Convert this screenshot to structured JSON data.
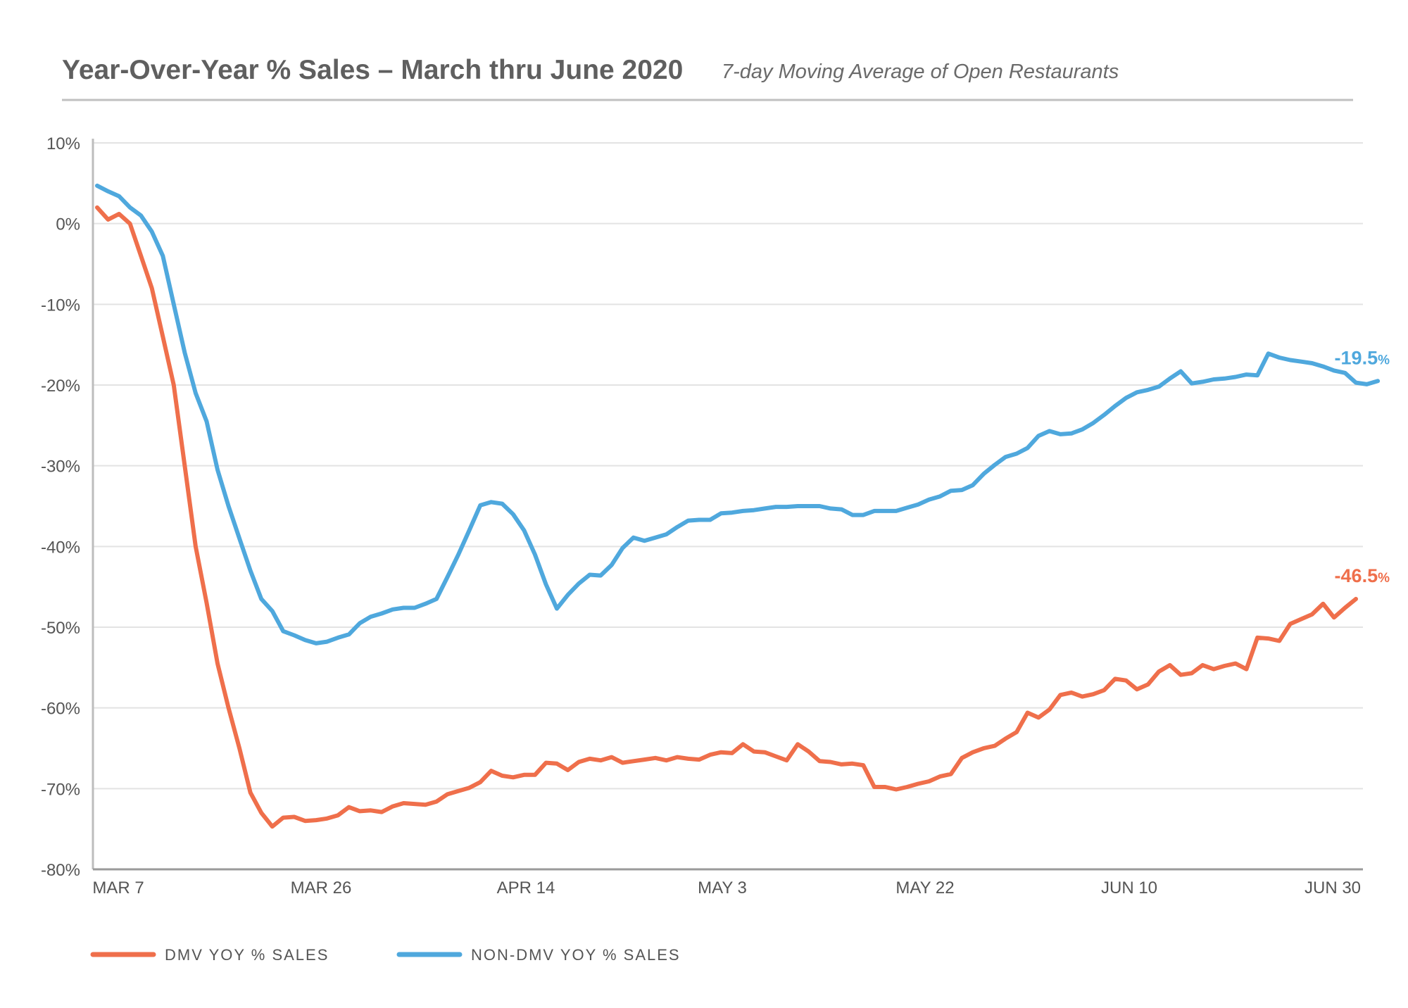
{
  "chart_data": {
    "type": "line",
    "title": "Year-Over-Year % Sales – March thru June 2020",
    "subtitle": "7-day Moving Average of Open Restaurants",
    "xlabel": "",
    "ylabel": "",
    "ylim": [
      -80,
      10
    ],
    "yticks": [
      "10%",
      "0%",
      "-10%",
      "-20%",
      "-30%",
      "-40%",
      "-50%",
      "-60%",
      "-70%",
      "-80%"
    ],
    "ytick_values": [
      10,
      0,
      -10,
      -20,
      -30,
      -40,
      -50,
      -60,
      -70,
      -80
    ],
    "xticks": [
      "MAR 7",
      "MAR 26",
      "APR 14",
      "MAY 3",
      "MAY 22",
      "JUN 10",
      "JUN 30"
    ],
    "x_start": "MAR 7",
    "x_end": "JUN 30",
    "grid": "horizontal",
    "legend_position": "bottom-left",
    "series": [
      {
        "name": "DMV YOY % SALES",
        "color": "#ef6f4b",
        "end_label": "-46.5",
        "end_label_unit": "%",
        "values": [
          2.0,
          0.5,
          1.2,
          0.0,
          -4.0,
          -8.0,
          -14.0,
          -20.0,
          -30.0,
          -40.0,
          -47.0,
          -54.5,
          -60.0,
          -65.0,
          -70.5,
          -73.0,
          -74.7,
          -73.6,
          -73.5,
          -74.0,
          -73.9,
          -73.7,
          -73.3,
          -72.3,
          -72.8,
          -72.7,
          -72.9,
          -72.2,
          -71.8,
          -71.9,
          -72.0,
          -71.6,
          -70.7,
          -70.3,
          -69.9,
          -69.2,
          -67.8,
          -68.4,
          -68.6,
          -68.3,
          -68.3,
          -66.8,
          -66.9,
          -67.7,
          -66.7,
          -66.3,
          -66.5,
          -66.1,
          -66.8,
          -66.6,
          -66.4,
          -66.2,
          -66.5,
          -66.1,
          -66.3,
          -66.4,
          -65.8,
          -65.5,
          -65.6,
          -64.5,
          -65.4,
          -65.5,
          -66.0,
          -66.5,
          -64.5,
          -65.4,
          -66.6,
          -66.7,
          -67.0,
          -66.9,
          -67.1,
          -69.8,
          -69.8,
          -70.1,
          -69.8,
          -69.4,
          -69.1,
          -68.5,
          -68.2,
          -66.2,
          -65.5,
          -65.0,
          -64.7,
          -63.8,
          -63.0,
          -60.6,
          -61.2,
          -60.2,
          -58.4,
          -58.1,
          -58.6,
          -58.3,
          -57.8,
          -56.4,
          -56.6,
          -57.7,
          -57.1,
          -55.5,
          -54.7,
          -55.9,
          -55.7,
          -54.7,
          -55.2,
          -54.8,
          -54.5,
          -55.2,
          -51.3,
          -51.4,
          -51.7,
          -49.6,
          -49.0,
          -48.4,
          -47.1,
          -48.8,
          -47.6,
          -46.5
        ]
      },
      {
        "name": "NON-DMV YOY % SALES",
        "color": "#4fa8dd",
        "end_label": "-19.5",
        "end_label_unit": "%",
        "values": [
          4.7,
          4.0,
          3.4,
          2.0,
          1.0,
          -1.0,
          -4.0,
          -10.0,
          -16.0,
          -21.0,
          -24.5,
          -30.5,
          -35.0,
          -39.0,
          -43.0,
          -46.5,
          -48.0,
          -50.5,
          -51.0,
          -51.6,
          -52.0,
          -51.8,
          -51.3,
          -50.9,
          -49.5,
          -48.7,
          -48.3,
          -47.8,
          -47.6,
          -47.6,
          -47.1,
          -46.5,
          -43.8,
          -41.0,
          -38.0,
          -34.9,
          -34.5,
          -34.7,
          -36.0,
          -38.0,
          -41.0,
          -44.7,
          -47.7,
          -46.0,
          -44.6,
          -43.5,
          -43.6,
          -42.3,
          -40.2,
          -38.9,
          -39.3,
          -38.9,
          -38.5,
          -37.6,
          -36.8,
          -36.7,
          -36.7,
          -35.9,
          -35.8,
          -35.6,
          -35.5,
          -35.3,
          -35.1,
          -35.1,
          -35.0,
          -35.0,
          -35.0,
          -35.3,
          -35.4,
          -36.1,
          -36.1,
          -35.6,
          -35.6,
          -35.6,
          -35.2,
          -34.8,
          -34.2,
          -33.8,
          -33.1,
          -33.0,
          -32.4,
          -31.0,
          -29.9,
          -28.9,
          -28.5,
          -27.8,
          -26.3,
          -25.7,
          -26.1,
          -26.0,
          -25.5,
          -24.7,
          -23.7,
          -22.6,
          -21.6,
          -20.9,
          -20.6,
          -20.2,
          -19.2,
          -18.3,
          -19.8,
          -19.6,
          -19.3,
          -19.2,
          -19.0,
          -18.7,
          -18.8,
          -16.1,
          -16.6,
          -16.9,
          -17.1,
          -17.3,
          -17.7,
          -18.2,
          -18.5,
          -19.7,
          -19.9,
          -19.5
        ]
      }
    ]
  }
}
